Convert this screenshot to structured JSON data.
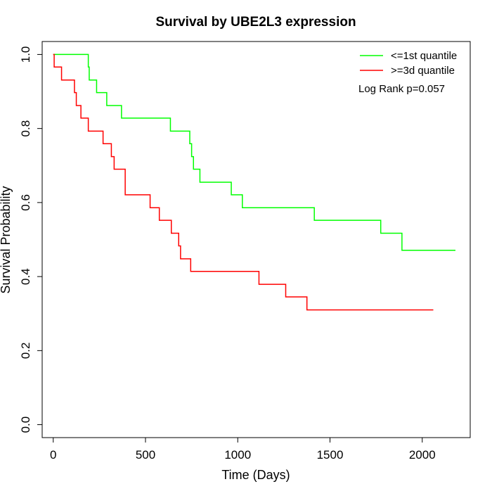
{
  "chart_data": {
    "type": "line",
    "title": "Survival by UBE2L3 expression",
    "xlabel": "Time (Days)",
    "ylabel": "Survival Probability",
    "xlim": [
      -60,
      2260
    ],
    "ylim": [
      -0.035,
      1.035
    ],
    "xticks": [
      0,
      500,
      1000,
      1500,
      2000
    ],
    "yticks": [
      0.0,
      0.2,
      0.4,
      0.6,
      0.8,
      1.0
    ],
    "xtick_labels": [
      "0",
      "500",
      "1000",
      "1500",
      "2000"
    ],
    "ytick_labels": [
      "0.0",
      "0.2",
      "0.4",
      "0.6",
      "0.8",
      "1.0"
    ],
    "grid": false,
    "legend_position": "top-right",
    "annotation": "Log Rank p=0.057",
    "series": [
      {
        "name": "<=1st quantile",
        "color": "#00ff00",
        "step": "post",
        "x": [
          0,
          190,
          195,
          205,
          235,
          290,
          370,
          635,
          740,
          750,
          760,
          770,
          795,
          965,
          1025,
          1415,
          1775,
          1890,
          2180
        ],
        "y": [
          1.0,
          0.966,
          0.931,
          0.931,
          0.897,
          0.862,
          0.828,
          0.793,
          0.759,
          0.724,
          0.69,
          0.69,
          0.655,
          0.621,
          0.586,
          0.552,
          0.517,
          0.471,
          0.471
        ]
      },
      {
        "name": ">=3d quantile",
        "color": "#ff0000",
        "step": "post",
        "x": [
          0,
          5,
          45,
          115,
          125,
          150,
          190,
          270,
          315,
          330,
          390,
          525,
          575,
          640,
          680,
          690,
          745,
          1115,
          1260,
          1375,
          2060
        ],
        "y": [
          1.0,
          0.966,
          0.931,
          0.897,
          0.862,
          0.828,
          0.793,
          0.759,
          0.724,
          0.69,
          0.621,
          0.586,
          0.552,
          0.517,
          0.483,
          0.448,
          0.414,
          0.379,
          0.345,
          0.31,
          0.31
        ]
      }
    ]
  }
}
